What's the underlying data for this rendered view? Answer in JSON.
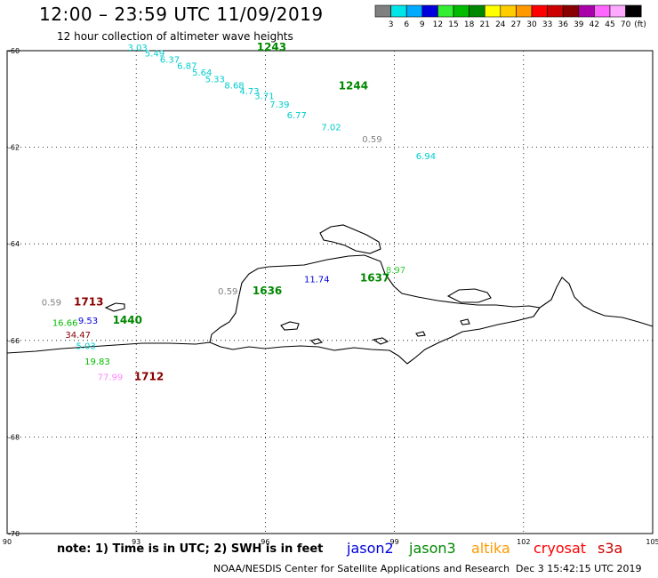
{
  "header": {
    "title": "12:00 – 23:59 UTC 11/09/2019",
    "subtitle": "12 hour collection of altimeter wave heights"
  },
  "colorbar": {
    "unit": "(ft)",
    "colors": [
      "#808080",
      "#00e5e5",
      "#00aaff",
      "#0000dd",
      "#33ee33",
      "#00bb00",
      "#008800",
      "#ffff00",
      "#ffcc00",
      "#ff9900",
      "#ff0000",
      "#cc0000",
      "#880000",
      "#aa00aa",
      "#ff66ff",
      "#ffaaff",
      "#000000"
    ],
    "labels": [
      "3",
      "6",
      "9",
      "12",
      "15",
      "18",
      "21",
      "24",
      "27",
      "30",
      "33",
      "36",
      "39",
      "42",
      "45",
      "70"
    ]
  },
  "axes": {
    "lat_labels": [
      "-60",
      "-62",
      "-64",
      "-66",
      "-68",
      "-70"
    ],
    "lon_labels": [
      "90",
      "93",
      "96",
      "99",
      "102",
      "105"
    ]
  },
  "annotations": [
    {
      "text": "3.03",
      "lon": 92.8,
      "lat": -60.0,
      "color": "#00cccc"
    },
    {
      "text": "1243",
      "lon": 95.8,
      "lat": -60.0,
      "color": "#008800",
      "bold": true
    },
    {
      "text": "5.49",
      "lon": 93.2,
      "lat": -60.12,
      "color": "#00cccc"
    },
    {
      "text": "6.37",
      "lon": 93.55,
      "lat": -60.25,
      "color": "#00cccc"
    },
    {
      "text": "6.87",
      "lon": 93.95,
      "lat": -60.38,
      "color": "#00cccc"
    },
    {
      "text": "5.64",
      "lon": 94.3,
      "lat": -60.52,
      "color": "#00cccc"
    },
    {
      "text": "5.33",
      "lon": 94.6,
      "lat": -60.65,
      "color": "#00cccc"
    },
    {
      "text": "8.68",
      "lon": 95.05,
      "lat": -60.78,
      "color": "#00cccc"
    },
    {
      "text": "1244",
      "lon": 97.7,
      "lat": -60.8,
      "color": "#008800",
      "bold": true
    },
    {
      "text": "4.73",
      "lon": 95.4,
      "lat": -60.9,
      "color": "#00cccc"
    },
    {
      "text": "3.71",
      "lon": 95.75,
      "lat": -61.0,
      "color": "#00cccc"
    },
    {
      "text": "7.39",
      "lon": 96.1,
      "lat": -61.18,
      "color": "#00cccc"
    },
    {
      "text": "6.77",
      "lon": 96.5,
      "lat": -61.4,
      "color": "#00cccc"
    },
    {
      "text": "7.02",
      "lon": 97.3,
      "lat": -61.65,
      "color": "#00cccc"
    },
    {
      "text": "0.59",
      "lon": 98.25,
      "lat": -61.9,
      "color": "#808080"
    },
    {
      "text": "6.94",
      "lon": 99.5,
      "lat": -62.25,
      "color": "#00cccc"
    },
    {
      "text": "11.74",
      "lon": 96.9,
      "lat": -64.8,
      "color": "#0000dd"
    },
    {
      "text": "8.97",
      "lon": 98.8,
      "lat": -64.6,
      "color": "#33cc33"
    },
    {
      "text": "1637",
      "lon": 98.2,
      "lat": -64.78,
      "color": "#008800",
      "bold": true
    },
    {
      "text": "0.59",
      "lon": 94.9,
      "lat": -65.05,
      "color": "#808080"
    },
    {
      "text": "1636",
      "lon": 95.7,
      "lat": -65.05,
      "color": "#008800",
      "bold": true
    },
    {
      "text": "0.59",
      "lon": 90.8,
      "lat": -65.28,
      "color": "#808080"
    },
    {
      "text": "1713",
      "lon": 91.55,
      "lat": -65.28,
      "color": "#880000",
      "bold": true
    },
    {
      "text": "16.66",
      "lon": 91.05,
      "lat": -65.7,
      "color": "#00bb00"
    },
    {
      "text": "9.53",
      "lon": 91.65,
      "lat": -65.65,
      "color": "#0000dd"
    },
    {
      "text": "1440",
      "lon": 92.45,
      "lat": -65.65,
      "color": "#008800",
      "bold": true
    },
    {
      "text": "34.47",
      "lon": 91.35,
      "lat": -65.95,
      "color": "#880000"
    },
    {
      "text": "5.03",
      "lon": 91.6,
      "lat": -66.18,
      "color": "#00cccc"
    },
    {
      "text": "19.83",
      "lon": 91.8,
      "lat": -66.5,
      "color": "#00bb00"
    },
    {
      "text": "77.99",
      "lon": 92.1,
      "lat": -66.82,
      "color": "#ff88ff"
    },
    {
      "text": "1712",
      "lon": 92.95,
      "lat": -66.82,
      "color": "#880000",
      "bold": true
    }
  ],
  "footer": {
    "note": "note: 1) Time is in UTC; 2) SWH is in feet",
    "satellites": [
      {
        "name": "jason2",
        "color": "#0000dd"
      },
      {
        "name": "jason3",
        "color": "#008800"
      },
      {
        "name": "altika",
        "color": "#ff9900"
      },
      {
        "name": "cryosat",
        "color": "#ff0000"
      },
      {
        "name": "s3a",
        "color": "#cc0000"
      }
    ],
    "credit": "NOAA/NESDIS Center for Satellite Applications and Research",
    "timestamp": "Dec  3 15:42:15 UTC 2019"
  }
}
